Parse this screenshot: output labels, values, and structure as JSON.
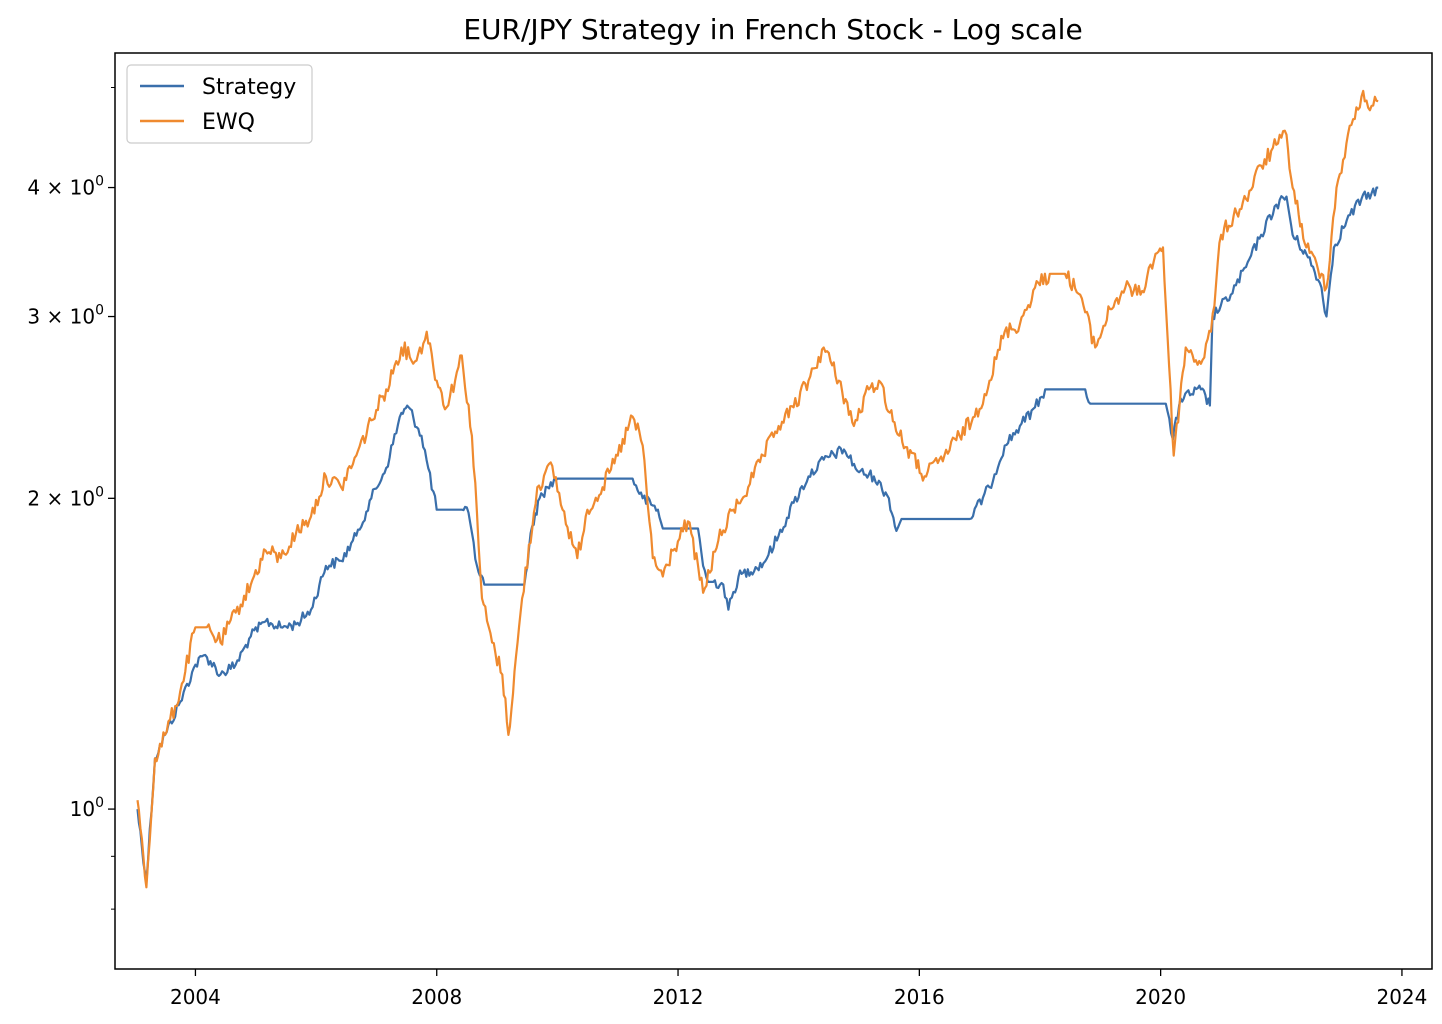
{
  "chart_data": {
    "type": "line",
    "title": "EUR/JPY Strategy in French Stock - Log scale",
    "xlabel": "",
    "ylabel": "",
    "x_scale": "time",
    "y_scale": "log",
    "xlim": [
      "2002-09-01",
      "2024-07-01"
    ],
    "ylim": [
      0.7,
      5.4
    ],
    "x_ticks": [
      {
        "date": "2004-01-01",
        "label": "2004"
      },
      {
        "date": "2008-01-01",
        "label": "2008"
      },
      {
        "date": "2012-01-01",
        "label": "2012"
      },
      {
        "date": "2016-01-01",
        "label": "2016"
      },
      {
        "date": "2020-01-01",
        "label": "2020"
      },
      {
        "date": "2024-01-01",
        "label": "2024"
      }
    ],
    "y_major_ticks": [
      {
        "value": 1,
        "base": "10",
        "exp": "0"
      },
      {
        "value": 2,
        "base": "2 × 10",
        "exp": "0"
      },
      {
        "value": 3,
        "base": "3 × 10",
        "exp": "0"
      },
      {
        "value": 4,
        "base": "4 × 10",
        "exp": "0"
      }
    ],
    "y_minor_ticks": [
      0.8,
      0.9,
      5
    ],
    "grid": false,
    "legend_position": "top-left",
    "series": [
      {
        "name": "Strategy",
        "color": "#3a6fab",
        "points": [
          [
            "2003-01-15",
            1.0
          ],
          [
            "2003-03-10",
            0.85
          ],
          [
            "2003-05-01",
            1.12
          ],
          [
            "2003-07-01",
            1.18
          ],
          [
            "2003-10-01",
            1.27
          ],
          [
            "2004-01-01",
            1.38
          ],
          [
            "2004-03-01",
            1.41
          ],
          [
            "2004-06-01",
            1.35
          ],
          [
            "2004-09-01",
            1.38
          ],
          [
            "2004-12-01",
            1.47
          ],
          [
            "2005-03-01",
            1.52
          ],
          [
            "2005-06-01",
            1.5
          ],
          [
            "2005-09-01",
            1.51
          ],
          [
            "2005-12-01",
            1.56
          ],
          [
            "2006-03-01",
            1.72
          ],
          [
            "2006-06-01",
            1.74
          ],
          [
            "2006-09-01",
            1.84
          ],
          [
            "2006-12-01",
            2.0
          ],
          [
            "2007-03-01",
            2.14
          ],
          [
            "2007-06-01",
            2.42
          ],
          [
            "2007-07-15",
            2.45
          ],
          [
            "2007-10-01",
            2.3
          ],
          [
            "2008-01-01",
            1.95
          ],
          [
            "2008-06-01",
            1.95
          ],
          [
            "2008-07-01",
            1.96
          ],
          [
            "2008-09-01",
            1.72
          ],
          [
            "2008-10-15",
            1.65
          ],
          [
            "2009-06-15",
            1.65
          ],
          [
            "2009-08-01",
            1.88
          ],
          [
            "2009-09-15",
            2.0
          ],
          [
            "2009-11-01",
            2.05
          ],
          [
            "2010-01-01",
            2.09
          ],
          [
            "2011-04-01",
            2.09
          ],
          [
            "2011-06-01",
            2.0
          ],
          [
            "2011-09-01",
            1.95
          ],
          [
            "2011-10-01",
            1.87
          ],
          [
            "2012-05-01",
            1.87
          ],
          [
            "2012-06-01",
            1.72
          ],
          [
            "2012-07-01",
            1.66
          ],
          [
            "2012-08-01",
            1.66
          ],
          [
            "2012-10-01",
            1.65
          ],
          [
            "2012-11-01",
            1.56
          ],
          [
            "2013-01-01",
            1.68
          ],
          [
            "2013-06-01",
            1.73
          ],
          [
            "2013-09-01",
            1.84
          ],
          [
            "2013-12-01",
            1.98
          ],
          [
            "2014-03-01",
            2.1
          ],
          [
            "2014-06-01",
            2.18
          ],
          [
            "2014-10-01",
            2.23
          ],
          [
            "2015-01-01",
            2.12
          ],
          [
            "2015-04-01",
            2.1
          ],
          [
            "2015-07-01",
            2.0
          ],
          [
            "2015-08-15",
            1.86
          ],
          [
            "2015-09-15",
            1.91
          ],
          [
            "2016-11-01",
            1.91
          ],
          [
            "2017-03-01",
            2.05
          ],
          [
            "2017-06-01",
            2.25
          ],
          [
            "2017-09-01",
            2.35
          ],
          [
            "2017-12-01",
            2.45
          ],
          [
            "2018-02-01",
            2.55
          ],
          [
            "2018-10-01",
            2.55
          ],
          [
            "2018-11-01",
            2.47
          ],
          [
            "2020-02-01",
            2.47
          ],
          [
            "2020-03-15",
            2.28
          ],
          [
            "2020-05-01",
            2.5
          ],
          [
            "2020-09-01",
            2.55
          ],
          [
            "2020-10-25",
            2.46
          ],
          [
            "2020-11-10",
            3.0
          ],
          [
            "2021-03-01",
            3.15
          ],
          [
            "2021-06-01",
            3.35
          ],
          [
            "2021-09-01",
            3.6
          ],
          [
            "2021-12-01",
            3.85
          ],
          [
            "2022-02-01",
            3.92
          ],
          [
            "2022-03-10",
            3.6
          ],
          [
            "2022-06-01",
            3.45
          ],
          [
            "2022-09-01",
            3.2
          ],
          [
            "2022-10-01",
            3.0
          ],
          [
            "2022-11-15",
            3.5
          ],
          [
            "2023-02-01",
            3.72
          ],
          [
            "2023-05-01",
            3.9
          ],
          [
            "2023-07-01",
            3.95
          ],
          [
            "2023-08-10",
            4.0
          ]
        ]
      },
      {
        "name": "EWQ",
        "color": "#ef8a2f",
        "points": [
          [
            "2003-01-15",
            1.02
          ],
          [
            "2003-03-10",
            0.84
          ],
          [
            "2003-05-01",
            1.12
          ],
          [
            "2003-07-01",
            1.18
          ],
          [
            "2003-10-01",
            1.3
          ],
          [
            "2004-01-01",
            1.5
          ],
          [
            "2004-03-01",
            1.5
          ],
          [
            "2004-06-01",
            1.45
          ],
          [
            "2004-09-01",
            1.55
          ],
          [
            "2004-12-01",
            1.65
          ],
          [
            "2005-03-01",
            1.78
          ],
          [
            "2005-06-01",
            1.75
          ],
          [
            "2005-09-01",
            1.85
          ],
          [
            "2005-12-01",
            1.92
          ],
          [
            "2006-03-01",
            2.1
          ],
          [
            "2006-06-01",
            2.05
          ],
          [
            "2006-09-01",
            2.2
          ],
          [
            "2006-12-01",
            2.38
          ],
          [
            "2007-03-01",
            2.55
          ],
          [
            "2007-06-01",
            2.8
          ],
          [
            "2007-09-01",
            2.72
          ],
          [
            "2007-11-01",
            2.9
          ],
          [
            "2008-01-01",
            2.6
          ],
          [
            "2008-03-01",
            2.45
          ],
          [
            "2008-06-01",
            2.75
          ],
          [
            "2008-08-01",
            2.3
          ],
          [
            "2008-10-01",
            1.6
          ],
          [
            "2008-12-01",
            1.45
          ],
          [
            "2009-02-01",
            1.35
          ],
          [
            "2009-03-10",
            1.18
          ],
          [
            "2009-06-01",
            1.6
          ],
          [
            "2009-09-01",
            2.05
          ],
          [
            "2009-12-01",
            2.15
          ],
          [
            "2010-02-01",
            1.95
          ],
          [
            "2010-05-01",
            1.75
          ],
          [
            "2010-07-01",
            1.95
          ],
          [
            "2010-10-01",
            2.05
          ],
          [
            "2011-01-01",
            2.2
          ],
          [
            "2011-04-01",
            2.4
          ],
          [
            "2011-06-01",
            2.25
          ],
          [
            "2011-08-01",
            1.75
          ],
          [
            "2011-10-01",
            1.68
          ],
          [
            "2011-12-01",
            1.78
          ],
          [
            "2012-03-01",
            1.9
          ],
          [
            "2012-06-01",
            1.62
          ],
          [
            "2012-09-01",
            1.82
          ],
          [
            "2012-12-01",
            1.95
          ],
          [
            "2013-03-01",
            2.05
          ],
          [
            "2013-06-01",
            2.2
          ],
          [
            "2013-09-01",
            2.35
          ],
          [
            "2013-12-01",
            2.45
          ],
          [
            "2014-03-01",
            2.6
          ],
          [
            "2014-06-01",
            2.8
          ],
          [
            "2014-09-01",
            2.6
          ],
          [
            "2014-12-01",
            2.35
          ],
          [
            "2015-03-01",
            2.55
          ],
          [
            "2015-05-01",
            2.6
          ],
          [
            "2015-09-01",
            2.3
          ],
          [
            "2016-02-01",
            2.1
          ],
          [
            "2016-06-01",
            2.2
          ],
          [
            "2016-09-01",
            2.3
          ],
          [
            "2016-12-01",
            2.4
          ],
          [
            "2017-03-01",
            2.6
          ],
          [
            "2017-06-01",
            2.9
          ],
          [
            "2017-09-01",
            2.95
          ],
          [
            "2017-12-01",
            3.2
          ],
          [
            "2018-03-01",
            3.3
          ],
          [
            "2018-06-01",
            3.3
          ],
          [
            "2018-09-01",
            3.15
          ],
          [
            "2018-12-01",
            2.8
          ],
          [
            "2019-03-01",
            3.05
          ],
          [
            "2019-06-01",
            3.2
          ],
          [
            "2019-09-01",
            3.15
          ],
          [
            "2019-12-01",
            3.45
          ],
          [
            "2020-01-15",
            3.5
          ],
          [
            "2020-03-20",
            2.2
          ],
          [
            "2020-06-01",
            2.8
          ],
          [
            "2020-09-01",
            2.7
          ],
          [
            "2020-11-01",
            2.9
          ],
          [
            "2021-01-01",
            3.6
          ],
          [
            "2021-06-01",
            3.9
          ],
          [
            "2021-09-01",
            4.2
          ],
          [
            "2021-12-01",
            4.4
          ],
          [
            "2022-02-01",
            4.5
          ],
          [
            "2022-03-10",
            4.0
          ],
          [
            "2022-06-01",
            3.5
          ],
          [
            "2022-09-01",
            3.3
          ],
          [
            "2022-10-01",
            3.2
          ],
          [
            "2022-12-01",
            4.0
          ],
          [
            "2023-03-01",
            4.6
          ],
          [
            "2023-05-01",
            4.9
          ],
          [
            "2023-07-01",
            4.8
          ],
          [
            "2023-08-10",
            4.85
          ]
        ]
      }
    ]
  }
}
